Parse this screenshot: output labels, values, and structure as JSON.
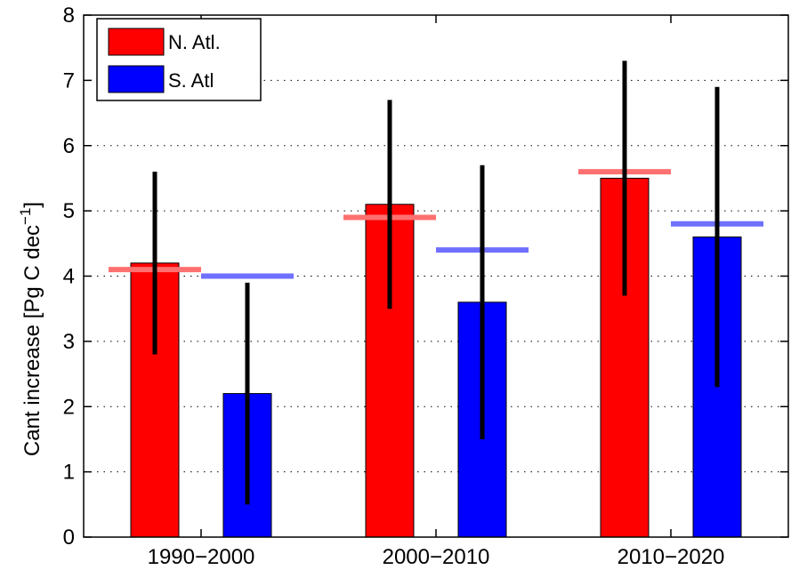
{
  "chart_data": {
    "type": "bar",
    "categories": [
      "1990−2000",
      "2000−2010",
      "2010−2020"
    ],
    "ylabel": "Cant increase [Pg C dec",
    "ylabel_sup": "−1",
    "ylabel_close": "]",
    "ylim": [
      0,
      8
    ],
    "yticks": [
      "0",
      "1",
      "2",
      "3",
      "4",
      "5",
      "6",
      "7",
      "8"
    ],
    "grid": true,
    "legend_position": "top-left",
    "series": [
      {
        "name": "N. Atl.",
        "color": "#ff0000",
        "values": [
          4.2,
          5.1,
          5.5
        ],
        "error_low": [
          2.8,
          3.5,
          3.7
        ],
        "error_high": [
          5.6,
          6.7,
          7.3
        ],
        "reference": [
          4.1,
          4.9,
          5.6
        ],
        "reference_color": "#ff7070"
      },
      {
        "name": "S. Atl",
        "color": "#0000ff",
        "values": [
          2.2,
          3.6,
          4.6
        ],
        "error_low": [
          0.5,
          1.5,
          2.3
        ],
        "error_high": [
          3.9,
          5.7,
          6.9
        ],
        "reference": [
          4.0,
          4.4,
          4.8
        ],
        "reference_color": "#7070ff"
      }
    ]
  }
}
